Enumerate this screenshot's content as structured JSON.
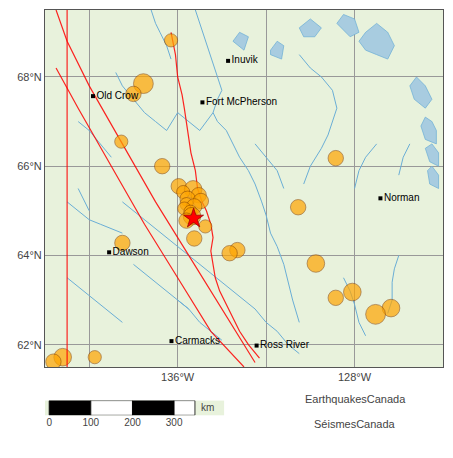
{
  "chart_data": {
    "type": "scatter",
    "xlim": [
      -142,
      -124
    ],
    "ylim": [
      61.5,
      69.5
    ],
    "xticks": [
      {
        "value": -140,
        "label": null
      },
      {
        "value": -136,
        "label": "136°W"
      },
      {
        "value": -132,
        "label": null
      },
      {
        "value": -128,
        "label": "128°W"
      }
    ],
    "yticks": [
      {
        "value": 62,
        "label": "62°N"
      },
      {
        "value": 64,
        "label": "64°N"
      },
      {
        "value": 66,
        "label": "66°N"
      },
      {
        "value": 68,
        "label": "68°N"
      }
    ],
    "grid": true,
    "grid_color": "#999999",
    "background": "#e8f2dc",
    "rivers": {
      "color": "#6aaed6",
      "lines": [
        [
          [
            -137.2,
            69.5
          ],
          [
            -137.0,
            69.2
          ],
          [
            -136.8,
            69.0
          ],
          [
            -136.5,
            68.7
          ],
          [
            -136.3,
            68.4
          ]
        ],
        [
          [
            -135.2,
            69.5
          ],
          [
            -135.0,
            69.2
          ],
          [
            -134.8,
            68.9
          ],
          [
            -134.6,
            68.6
          ],
          [
            -134.4,
            68.3
          ],
          [
            -134.2,
            68.0
          ],
          [
            -134.0,
            67.7
          ],
          [
            -134.2,
            67.5
          ],
          [
            -134.4,
            67.2
          ]
        ],
        [
          [
            -134.4,
            67.2
          ],
          [
            -134.2,
            67.0
          ],
          [
            -133.8,
            66.8
          ],
          [
            -133.5,
            66.5
          ],
          [
            -133.2,
            66.2
          ],
          [
            -132.8,
            65.9
          ],
          [
            -132.5,
            65.6
          ],
          [
            -132.2,
            65.2
          ],
          [
            -132.0,
            64.9
          ],
          [
            -131.8,
            64.5
          ],
          [
            -131.5,
            64.2
          ],
          [
            -131.2,
            63.8
          ],
          [
            -131.0,
            63.4
          ],
          [
            -130.8,
            63.0
          ],
          [
            -130.5,
            62.5
          ]
        ],
        [
          [
            -136.0,
            67.2
          ],
          [
            -135.5,
            67.0
          ],
          [
            -135.0,
            66.8
          ],
          [
            -134.4,
            67.2
          ]
        ],
        [
          [
            -138.0,
            67.5
          ],
          [
            -137.5,
            67.2
          ],
          [
            -137.0,
            67.0
          ],
          [
            -136.5,
            66.8
          ],
          [
            -136.0,
            67.2
          ]
        ],
        [
          [
            -130.5,
            68.5
          ],
          [
            -130.0,
            68.2
          ],
          [
            -129.5,
            68.0
          ],
          [
            -129.0,
            67.7
          ],
          [
            -128.8,
            67.3
          ],
          [
            -129.0,
            67.0
          ],
          [
            -129.2,
            66.7
          ]
        ],
        [
          [
            -132.5,
            66.5
          ],
          [
            -132.0,
            66.2
          ],
          [
            -131.5,
            65.9
          ],
          [
            -131.2,
            65.5
          ]
        ],
        [
          [
            -138.5,
            65.2
          ],
          [
            -138.0,
            65.0
          ],
          [
            -137.5,
            64.8
          ],
          [
            -137.0,
            64.6
          ],
          [
            -136.5,
            64.4
          ],
          [
            -136.0,
            64.2
          ],
          [
            -135.5,
            64.0
          ],
          [
            -135.0,
            63.8
          ],
          [
            -134.5,
            63.6
          ]
        ],
        [
          [
            -141.0,
            65.2
          ],
          [
            -140.5,
            65.0
          ],
          [
            -140.0,
            64.8
          ],
          [
            -139.5,
            64.7
          ],
          [
            -139.0,
            64.6
          ],
          [
            -138.5,
            64.5
          ]
        ],
        [
          [
            -134.5,
            63.6
          ],
          [
            -134.0,
            63.4
          ],
          [
            -133.5,
            63.2
          ],
          [
            -133.0,
            63.0
          ],
          [
            -132.5,
            62.8
          ],
          [
            -132.0,
            62.5
          ]
        ],
        [
          [
            -138.0,
            63.8
          ],
          [
            -137.5,
            63.6
          ],
          [
            -137.0,
            63.4
          ],
          [
            -136.5,
            63.2
          ],
          [
            -136.0,
            63.0
          ],
          [
            -135.5,
            62.8
          ]
        ],
        [
          [
            -141.0,
            63.5
          ],
          [
            -140.5,
            63.3
          ],
          [
            -140.0,
            63.1
          ],
          [
            -139.5,
            62.9
          ],
          [
            -139.0,
            62.7
          ],
          [
            -138.5,
            62.5
          ]
        ],
        [
          [
            -136.0,
            63.0
          ],
          [
            -135.5,
            62.8
          ],
          [
            -135.0,
            62.5
          ],
          [
            -134.5,
            62.3
          ],
          [
            -134.0,
            62.1
          ]
        ],
        [
          [
            -132.0,
            62.5
          ],
          [
            -131.5,
            62.3
          ],
          [
            -131.0,
            62.0
          ],
          [
            -130.5,
            61.8
          ]
        ],
        [
          [
            -128.5,
            63.5
          ],
          [
            -128.2,
            63.2
          ],
          [
            -128.0,
            62.9
          ],
          [
            -127.8,
            62.5
          ],
          [
            -127.5,
            62.2
          ]
        ],
        [
          [
            -126.0,
            64.0
          ],
          [
            -126.2,
            63.7
          ],
          [
            -126.3,
            63.4
          ],
          [
            -126.3,
            63.0
          ],
          [
            -126.5,
            62.7
          ]
        ],
        [
          [
            -138.0,
            67.5
          ],
          [
            -138.5,
            67.8
          ],
          [
            -138.8,
            68.1
          ]
        ],
        [
          [
            -140.5,
            67.0
          ],
          [
            -140.0,
            66.8
          ],
          [
            -139.5,
            66.5
          ],
          [
            -139.0,
            66.2
          ]
        ],
        [
          [
            -140.5,
            65.5
          ],
          [
            -140.2,
            65.2
          ],
          [
            -140.0,
            65.0
          ]
        ],
        [
          [
            -129.2,
            66.7
          ],
          [
            -129.5,
            66.4
          ],
          [
            -130.0,
            66.0
          ],
          [
            -130.3,
            65.6
          ]
        ],
        [
          [
            -127.0,
            66.5
          ],
          [
            -127.5,
            66.2
          ],
          [
            -127.8,
            65.9
          ],
          [
            -128.0,
            65.5
          ]
        ],
        [
          [
            -125.5,
            66.5
          ],
          [
            -125.8,
            66.2
          ],
          [
            -126.0,
            65.8
          ]
        ]
      ]
    },
    "lakes": {
      "color": "#a8cce0",
      "edge_color": "#6aaed6",
      "polygons": [
        [
          [
            -127.8,
            68.8
          ],
          [
            -127.5,
            69.0
          ],
          [
            -127.0,
            69.2
          ],
          [
            -126.5,
            69.0
          ],
          [
            -126.2,
            68.7
          ],
          [
            -126.5,
            68.4
          ],
          [
            -127.0,
            68.5
          ],
          [
            -127.5,
            68.6
          ],
          [
            -127.8,
            68.8
          ]
        ],
        [
          [
            -128.8,
            69.2
          ],
          [
            -128.5,
            69.4
          ],
          [
            -128.0,
            69.3
          ],
          [
            -127.8,
            69.0
          ],
          [
            -128.2,
            68.9
          ],
          [
            -128.8,
            69.2
          ]
        ],
        [
          [
            -130.5,
            69.1
          ],
          [
            -130.0,
            69.3
          ],
          [
            -129.5,
            69.1
          ],
          [
            -129.8,
            68.9
          ],
          [
            -130.3,
            68.9
          ],
          [
            -130.5,
            69.1
          ]
        ],
        [
          [
            -124.5,
            67.5
          ],
          [
            -124.8,
            67.8
          ],
          [
            -125.2,
            68.0
          ],
          [
            -125.5,
            67.8
          ],
          [
            -125.3,
            67.5
          ],
          [
            -124.8,
            67.3
          ],
          [
            -124.5,
            67.5
          ]
        ],
        [
          [
            -124.3,
            66.8
          ],
          [
            -124.5,
            67.0
          ],
          [
            -124.8,
            67.1
          ],
          [
            -125.0,
            66.9
          ],
          [
            -124.8,
            66.6
          ],
          [
            -124.3,
            66.5
          ],
          [
            -124.3,
            66.8
          ]
        ],
        [
          [
            -124.2,
            66.3
          ],
          [
            -124.5,
            66.5
          ],
          [
            -124.8,
            66.4
          ],
          [
            -124.6,
            66.1
          ],
          [
            -124.2,
            66.0
          ],
          [
            -124.2,
            66.3
          ]
        ],
        [
          [
            -124.2,
            65.8
          ],
          [
            -124.5,
            66.0
          ],
          [
            -124.7,
            65.9
          ],
          [
            -124.6,
            65.6
          ],
          [
            -124.2,
            65.5
          ],
          [
            -124.2,
            65.8
          ]
        ],
        [
          [
            -133.5,
            68.8
          ],
          [
            -133.2,
            69.0
          ],
          [
            -132.8,
            68.9
          ],
          [
            -133.0,
            68.6
          ],
          [
            -133.5,
            68.8
          ]
        ],
        [
          [
            -131.8,
            68.6
          ],
          [
            -131.5,
            68.8
          ],
          [
            -131.2,
            68.7
          ],
          [
            -131.3,
            68.4
          ],
          [
            -131.8,
            68.5
          ],
          [
            -131.8,
            68.6
          ]
        ]
      ]
    },
    "borders": {
      "color": "red",
      "vertical_x": -141.0,
      "lines": [
        [
          [
            -141.5,
            69.5
          ],
          [
            -141.0,
            68.8
          ],
          [
            -140.0,
            67.8
          ],
          [
            -138.5,
            66.5
          ],
          [
            -137.0,
            65.2
          ],
          [
            -135.5,
            64.0
          ],
          [
            -134.0,
            62.8
          ],
          [
            -132.5,
            61.6
          ]
        ],
        [
          [
            -141.5,
            68.2
          ],
          [
            -140.5,
            67.3
          ],
          [
            -139.0,
            66.0
          ],
          [
            -137.5,
            64.7
          ],
          [
            -136.0,
            63.5
          ],
          [
            -134.5,
            62.3
          ],
          [
            -133.0,
            61.5
          ]
        ],
        [
          [
            -136.3,
            69.0
          ],
          [
            -136.1,
            68.5
          ],
          [
            -136.0,
            68.0
          ],
          [
            -135.8,
            67.6
          ],
          [
            -135.7,
            67.3
          ],
          [
            -135.6,
            67.0
          ],
          [
            -135.5,
            66.7
          ],
          [
            -135.4,
            66.3
          ],
          [
            -135.2,
            65.9
          ],
          [
            -135.1,
            65.5
          ],
          [
            -134.9,
            65.2
          ],
          [
            -134.7,
            65.0
          ],
          [
            -134.5,
            64.7
          ],
          [
            -134.4,
            64.4
          ],
          [
            -134.5,
            64.1
          ],
          [
            -134.4,
            63.8
          ],
          [
            -134.3,
            63.5
          ],
          [
            -134.1,
            63.2
          ],
          [
            -133.8,
            62.9
          ],
          [
            -133.5,
            62.6
          ],
          [
            -133.2,
            62.3
          ],
          [
            -132.8,
            62.0
          ],
          [
            -132.3,
            61.7
          ]
        ]
      ]
    },
    "earthquakes": {
      "color": "#FFA500",
      "edge_color": "#7a3800",
      "marker": "circle",
      "x": [
        -136.3,
        -137.55,
        -138.0,
        -138.55,
        -136.7,
        -128.85,
        -130.55,
        -135.95,
        -135.3,
        -135.75,
        -135.05,
        -135.55,
        -134.95,
        -135.6,
        -135.25,
        -135.7,
        -135.42,
        -135.35,
        -135.6,
        -134.75,
        -135.25,
        -133.3,
        -133.65,
        -138.5,
        -129.75,
        -128.1,
        -128.85,
        -126.35,
        -127.05,
        -141.2,
        -141.62,
        -139.75
      ],
      "y": [
        68.82,
        67.85,
        67.62,
        66.55,
        66.0,
        66.18,
        65.08,
        65.55,
        65.48,
        65.42,
        65.35,
        65.27,
        65.22,
        65.15,
        65.1,
        65.05,
        64.98,
        64.88,
        64.78,
        64.65,
        64.38,
        64.12,
        64.05,
        64.28,
        63.82,
        63.18,
        63.05,
        62.82,
        62.68,
        61.72,
        61.62,
        61.72
      ],
      "size": [
        6,
        9,
        7,
        6,
        7,
        7,
        7,
        7,
        8,
        6,
        7,
        7,
        7,
        6,
        7,
        6,
        6,
        8,
        7,
        6,
        7,
        7,
        7,
        7,
        8,
        8,
        7,
        8,
        9,
        8,
        7,
        6
      ]
    },
    "mainshock": {
      "x": -135.28,
      "y": 64.83,
      "color": "red",
      "edge_color": "darkred",
      "marker": "star"
    },
    "cities": {
      "color": "black",
      "marker": "square",
      "names": [
        "Inuvik",
        "Old Crow",
        "Fort McPherson",
        "Norman",
        "Dawson",
        "Carmacks",
        "Ross River"
      ],
      "x": [
        -133.72,
        -139.83,
        -134.88,
        -126.83,
        -139.1,
        -136.28,
        -132.43
      ],
      "y": [
        68.36,
        67.57,
        67.43,
        65.28,
        64.07,
        62.08,
        61.98
      ]
    },
    "scale_bar": {
      "xlim": [
        -10,
        420
      ],
      "ticks": [
        0,
        100,
        200,
        300
      ],
      "segments": [
        0,
        100,
        200,
        300,
        350
      ],
      "colors": [
        "black",
        "white",
        "black",
        "white"
      ],
      "unit": "km"
    },
    "annotations": [
      "EarthquakesCanada",
      "SéismesCanada"
    ]
  }
}
